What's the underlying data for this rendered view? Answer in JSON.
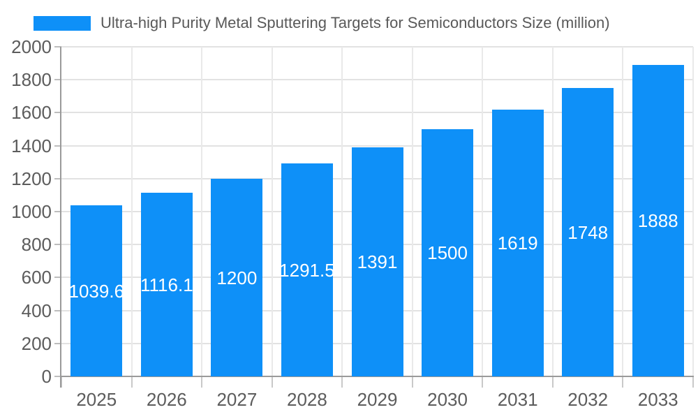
{
  "chart_data": {
    "type": "bar",
    "title": "Ultra-high Purity Metal Sputtering Targets for Semiconductors Size (million)",
    "legend": {
      "label": "Ultra-high Purity Metal Sputtering Targets for Semiconductors Size (million)",
      "position": "top-left"
    },
    "categories": [
      "2025",
      "2026",
      "2027",
      "2028",
      "2029",
      "2030",
      "2031",
      "2032",
      "2033"
    ],
    "series": [
      {
        "name": "Ultra-high Purity Metal Sputtering Targets for Semiconductors Size (million)",
        "values": [
          1039.6,
          1116.1,
          1200,
          1291.5,
          1391,
          1500,
          1619,
          1748,
          1888
        ]
      }
    ],
    "xlabel": "",
    "ylabel": "",
    "ylim": [
      0,
      2000
    ],
    "yticks": [
      0,
      200,
      400,
      600,
      800,
      1000,
      1200,
      1400,
      1600,
      1800,
      2000
    ],
    "grid": true,
    "value_labels_inside_bars": true,
    "colors": {
      "bar": "#0e90f8",
      "bar_label_text": "#ffffff",
      "axis_line": "#9a9a9a",
      "tick": "#c9c9c9",
      "y_tick": "#bdbdbd",
      "grid_h": "#e2e2e2",
      "grid_v": "#e9e9e9",
      "axis_label_text": "#5c5c5c",
      "legend_text": "#595959",
      "background": "#ffffff"
    }
  }
}
